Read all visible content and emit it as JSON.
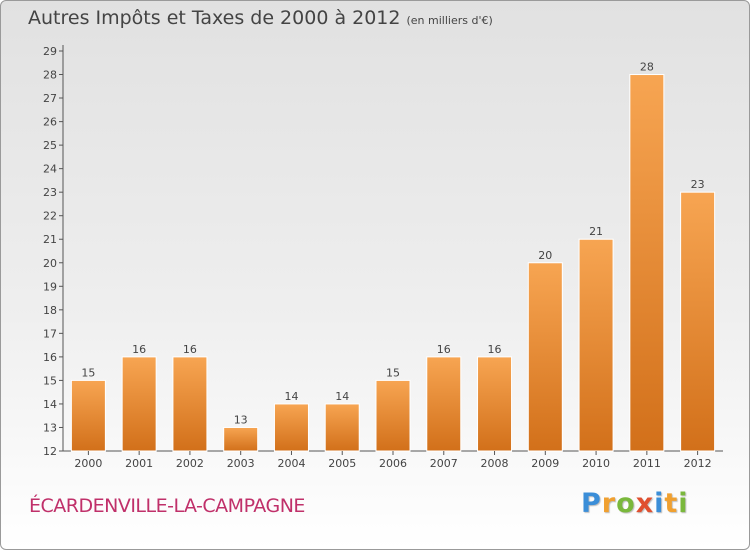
{
  "title": "Autres Impôts et Taxes de 2000 à 2012",
  "subtitle": "(en milliers d'€)",
  "commune": "ÉCARDENVILLE-LA-CAMPAGNE",
  "logo": {
    "letters": [
      "P",
      "r",
      "o",
      "x",
      "i",
      "t",
      "i"
    ],
    "colors": [
      "#3b8ed8",
      "#f0a030",
      "#7ab83c",
      "#e05030",
      "#3b8ed8",
      "#f0a030",
      "#7ab83c"
    ]
  },
  "colors": {
    "bar_light": "#f7a552",
    "bar_dark": "#d2701a",
    "text": "#444444"
  },
  "chart_data": {
    "type": "bar",
    "categories": [
      "2000",
      "2001",
      "2002",
      "2003",
      "2004",
      "2005",
      "2006",
      "2007",
      "2008",
      "2009",
      "2010",
      "2011",
      "2012"
    ],
    "values": [
      15,
      16,
      16,
      13,
      14,
      14,
      15,
      16,
      16,
      20,
      21,
      28,
      23
    ],
    "ylim": [
      12,
      29
    ],
    "yticks": [
      12,
      13,
      14,
      15,
      16,
      17,
      18,
      19,
      20,
      21,
      22,
      23,
      24,
      25,
      26,
      27,
      28,
      29
    ],
    "grid": false,
    "data_labels": true
  }
}
